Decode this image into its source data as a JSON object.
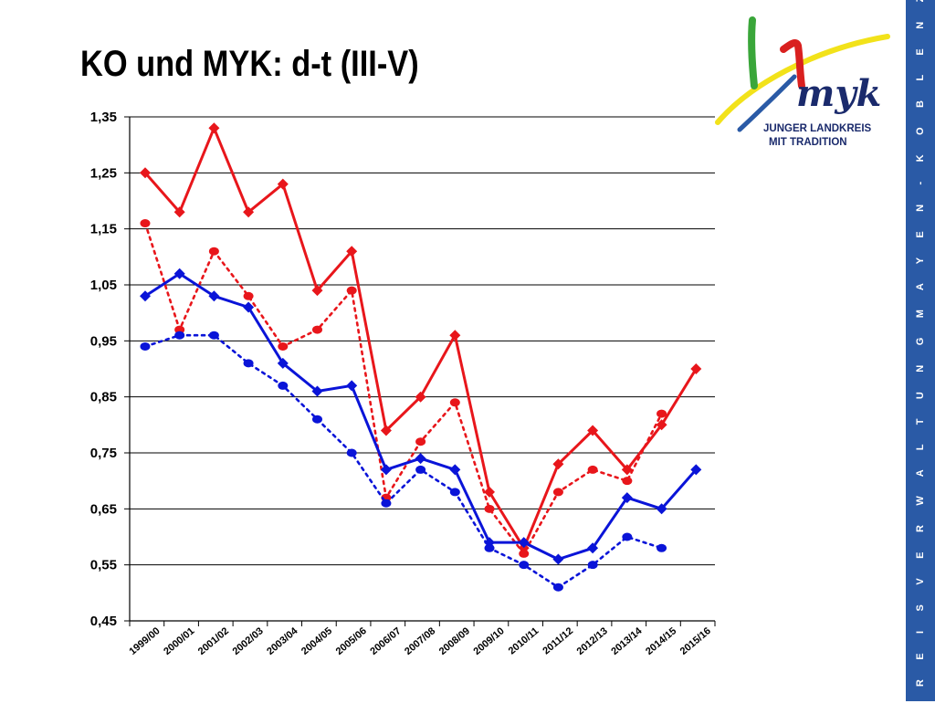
{
  "slide": {
    "title": "KO und MYK: d-t (III-V)",
    "side_band_text": "K R E I S V E R W A L T U N G   M A Y E N - K O B L E N Z",
    "logo": {
      "line1": "JUNGER LANDKREIS",
      "line2": "MIT TRADITION",
      "mark": "myk"
    }
  },
  "chart_data": {
    "type": "line",
    "title": "",
    "xlabel": "",
    "ylabel": "",
    "ylim": [
      0.45,
      1.35
    ],
    "yticks": [
      0.45,
      0.55,
      0.65,
      0.75,
      0.85,
      0.95,
      1.05,
      1.15,
      1.25,
      1.35
    ],
    "ytick_labels": [
      "0,45",
      "0,55",
      "0,65",
      "0,75",
      "0,85",
      "0,95",
      "1,05",
      "1,15",
      "1,25",
      "1,35"
    ],
    "grid": "horizontal",
    "legend": "none",
    "categories": [
      "1999/00",
      "2000/01",
      "2001/02",
      "2002/03",
      "2003/04",
      "2004/05",
      "2005/06",
      "2006/07",
      "2007/08",
      "2008/09",
      "2009/10",
      "2010/11",
      "2011/12",
      "2012/13",
      "2013/14",
      "2014/15",
      "2015/16"
    ],
    "series": [
      {
        "color": "#e8161b",
        "line_style": "solid",
        "marker": "diamond",
        "values": [
          1.25,
          1.18,
          1.33,
          1.18,
          1.23,
          1.04,
          1.11,
          0.79,
          0.85,
          0.96,
          0.68,
          0.58,
          0.73,
          0.79,
          0.72,
          0.8,
          0.9
        ]
      },
      {
        "color": "#e8161b",
        "line_style": "dotted",
        "marker": "circle",
        "values": [
          1.16,
          0.97,
          1.11,
          1.03,
          0.94,
          0.97,
          1.04,
          0.67,
          0.77,
          0.84,
          0.65,
          0.57,
          0.68,
          0.72,
          0.7,
          0.82,
          null
        ]
      },
      {
        "color": "#0a14d8",
        "line_style": "solid",
        "marker": "diamond",
        "values": [
          1.03,
          1.07,
          1.03,
          1.01,
          0.91,
          0.86,
          0.87,
          0.72,
          0.74,
          0.72,
          0.59,
          0.59,
          0.56,
          0.58,
          0.67,
          0.65,
          0.72
        ]
      },
      {
        "color": "#0a14d8",
        "line_style": "dotted",
        "marker": "circle",
        "values": [
          0.94,
          0.96,
          0.96,
          0.91,
          0.87,
          0.81,
          0.75,
          0.66,
          0.72,
          0.68,
          0.58,
          0.55,
          0.51,
          0.55,
          0.6,
          0.58,
          null
        ]
      }
    ]
  }
}
